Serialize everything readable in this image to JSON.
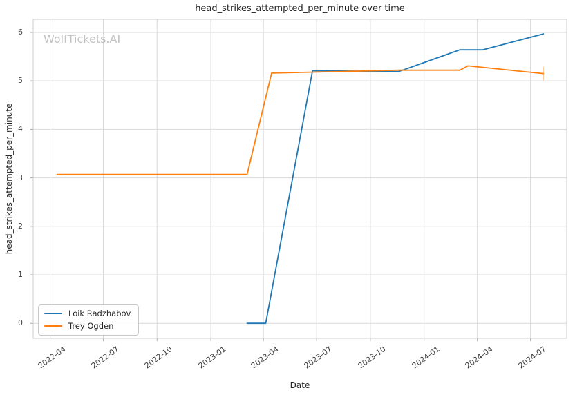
{
  "page": {
    "watermark": "WolfTickets.AI"
  },
  "chart_data": {
    "type": "line",
    "title": "head_strikes_attempted_per_minute over time",
    "xlabel": "Date",
    "ylabel": "head_strikes_attempted_per_minute",
    "grid": true,
    "legend_position": "lower left",
    "x_domain": [
      "2022-03-03",
      "2024-09-01"
    ],
    "y_domain": [
      -0.31,
      6.27
    ],
    "x_ticks": [
      {
        "date": "2022-04-01",
        "label": "2022-04"
      },
      {
        "date": "2022-07-01",
        "label": "2022-07"
      },
      {
        "date": "2022-10-01",
        "label": "2022-10"
      },
      {
        "date": "2023-01-01",
        "label": "2023-01"
      },
      {
        "date": "2023-04-01",
        "label": "2023-04"
      },
      {
        "date": "2023-07-01",
        "label": "2023-07"
      },
      {
        "date": "2023-10-01",
        "label": "2023-10"
      },
      {
        "date": "2024-01-01",
        "label": "2024-01"
      },
      {
        "date": "2024-04-01",
        "label": "2024-04"
      },
      {
        "date": "2024-07-01",
        "label": "2024-07"
      }
    ],
    "y_ticks": [
      0,
      1,
      2,
      3,
      4,
      5,
      6
    ],
    "series": [
      {
        "name": "Loik Radzhabov",
        "color": "#1f77b4",
        "points": [
          {
            "date": "2023-03-04",
            "value": 0.0
          },
          {
            "date": "2023-04-05",
            "value": 0.0
          },
          {
            "date": "2023-06-24",
            "value": 5.21
          },
          {
            "date": "2023-11-18",
            "value": 5.19
          },
          {
            "date": "2024-03-02",
            "value": 5.64
          },
          {
            "date": "2024-04-10",
            "value": 5.64
          },
          {
            "date": "2024-07-23",
            "value": 5.97
          }
        ]
      },
      {
        "name": "Trey Ogden",
        "color": "#ff7f0e",
        "points": [
          {
            "date": "2022-04-13",
            "value": 3.07
          },
          {
            "date": "2023-03-04",
            "value": 3.07
          },
          {
            "date": "2023-04-15",
            "value": 5.16
          },
          {
            "date": "2023-11-18",
            "value": 5.22
          },
          {
            "date": "2024-03-02",
            "value": 5.22
          },
          {
            "date": "2024-03-16",
            "value": 5.31
          },
          {
            "date": "2024-07-23",
            "value": 5.15
          }
        ],
        "error_bar": {
          "date": "2024-07-23",
          "low": 5.01,
          "high": 5.29
        }
      }
    ],
    "colors": {
      "grid": "#d9d9d9",
      "spine": "#cccccc",
      "tick_mark": "#aaaaaa",
      "text": "#262626",
      "tick_text": "#3d3d3d",
      "watermark": "#c2c2c2",
      "background": "#ffffff"
    }
  }
}
